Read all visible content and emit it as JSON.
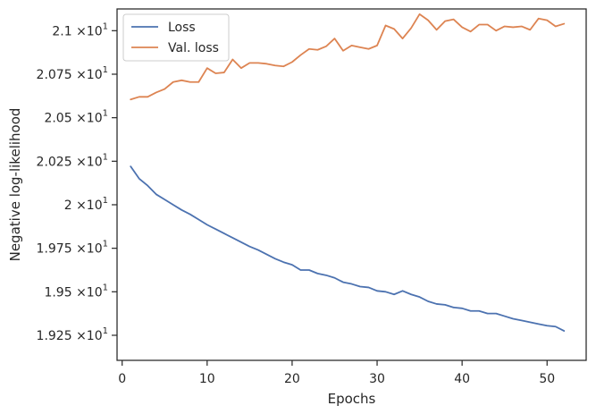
{
  "chart_data": {
    "type": "line",
    "title": "",
    "xlabel": "Epochs",
    "ylabel": "Negative log-likelihood",
    "xlim": [
      -0.6,
      54.6
    ],
    "ylim": [
      19.106,
      21.125
    ],
    "xticks": [
      0,
      10,
      20,
      30,
      40,
      50
    ],
    "xtick_labels": [
      "0",
      "10",
      "20",
      "30",
      "40",
      "50"
    ],
    "yticks": [
      19.25,
      19.5,
      19.75,
      20.0,
      20.25,
      20.5,
      20.75,
      21.0
    ],
    "ytick_labels": [
      {
        "mantissa": "1.925",
        "exp": "1"
      },
      {
        "mantissa": "1.95",
        "exp": "1"
      },
      {
        "mantissa": "1.975",
        "exp": "1"
      },
      {
        "mantissa": "2",
        "exp": "1"
      },
      {
        "mantissa": "2.025",
        "exp": "1"
      },
      {
        "mantissa": "2.05",
        "exp": "1"
      },
      {
        "mantissa": "2.075",
        "exp": "1"
      },
      {
        "mantissa": "2.1",
        "exp": "1"
      }
    ],
    "ytick_times": "×10",
    "grid": false,
    "legend": "top-left",
    "x": [
      1,
      2,
      3,
      4,
      5,
      6,
      7,
      8,
      9,
      10,
      11,
      12,
      13,
      14,
      15,
      16,
      17,
      18,
      19,
      20,
      21,
      22,
      23,
      24,
      25,
      26,
      27,
      28,
      29,
      30,
      31,
      32,
      33,
      34,
      35,
      36,
      37,
      38,
      39,
      40,
      41,
      42,
      43,
      44,
      45,
      46,
      47,
      48,
      49,
      50,
      51,
      52
    ],
    "series": [
      {
        "name": "Loss",
        "color": "#4c72b0",
        "values": [
          20.22,
          20.15,
          20.11,
          20.06,
          20.03,
          20.0,
          19.97,
          19.945,
          19.915,
          19.885,
          19.86,
          19.835,
          19.81,
          19.785,
          19.76,
          19.74,
          19.715,
          19.69,
          19.67,
          19.655,
          19.625,
          19.625,
          19.605,
          19.595,
          19.58,
          19.555,
          19.545,
          19.53,
          19.525,
          19.505,
          19.5,
          19.485,
          19.505,
          19.485,
          19.47,
          19.445,
          19.43,
          19.425,
          19.41,
          19.405,
          19.39,
          19.39,
          19.375,
          19.375,
          19.36,
          19.345,
          19.335,
          19.325,
          19.315,
          19.305,
          19.3,
          19.275
        ]
      },
      {
        "name": "Val. loss",
        "color": "#dd8452",
        "values": [
          20.605,
          20.62,
          20.62,
          20.645,
          20.665,
          20.705,
          20.715,
          20.705,
          20.705,
          20.785,
          20.755,
          20.76,
          20.835,
          20.785,
          20.815,
          20.815,
          20.81,
          20.8,
          20.795,
          20.82,
          20.86,
          20.895,
          20.89,
          20.91,
          20.955,
          20.885,
          20.915,
          20.905,
          20.895,
          20.915,
          21.03,
          21.01,
          20.955,
          21.015,
          21.095,
          21.06,
          21.005,
          21.055,
          21.065,
          21.02,
          20.995,
          21.035,
          21.035,
          21.0,
          21.025,
          21.02,
          21.025,
          21.005,
          21.07,
          21.06,
          21.025,
          21.04
        ]
      }
    ]
  }
}
